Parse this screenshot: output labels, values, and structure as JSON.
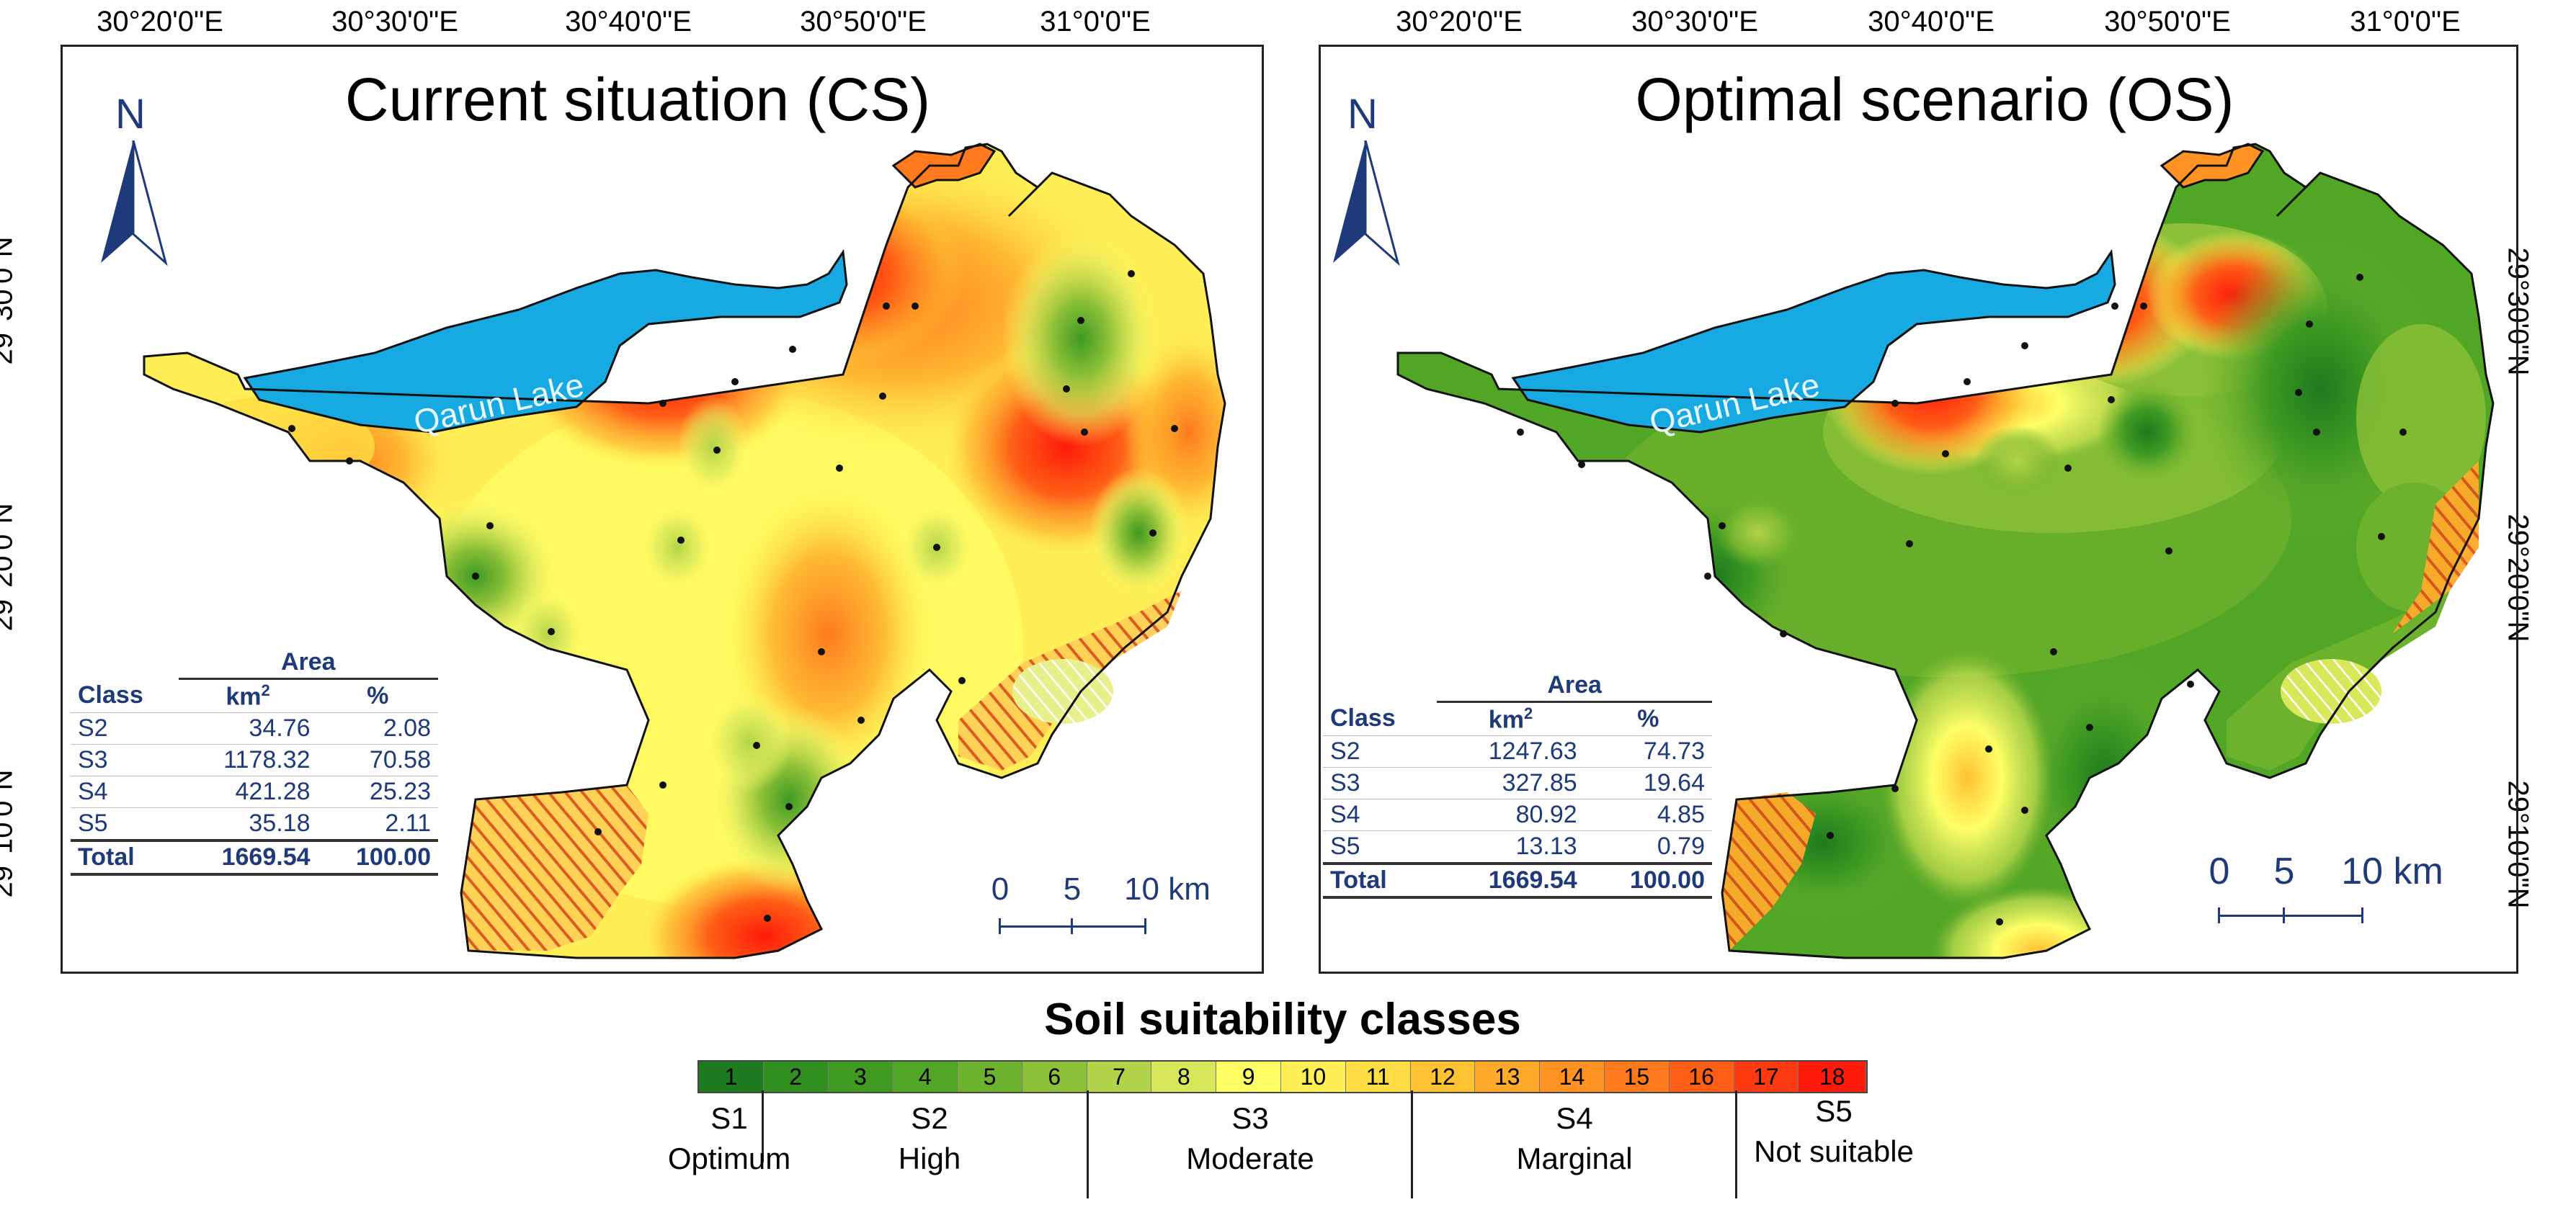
{
  "longitude_labels": [
    "30°20'0\"E",
    "30°30'0\"E",
    "30°40'0\"E",
    "30°50'0\"E",
    "31°0'0\"E"
  ],
  "latitude_labels": [
    "29°30'0\"N",
    "29°20'0\"N",
    "29°10'0\"N"
  ],
  "north_arrow": {
    "letter": "N"
  },
  "lake_label": "Qarun Lake",
  "scale_bar": {
    "labels": [
      "0",
      "5",
      "10 km"
    ]
  },
  "maps": [
    {
      "title": "Current situation (CS)",
      "table": {
        "header_area": "Area",
        "col_class": "Class",
        "col_km2_base": "km",
        "col_km2_sup": "2",
        "col_pct": "%",
        "rows": [
          {
            "cls": "S2",
            "km2": "34.76",
            "pct": "2.08"
          },
          {
            "cls": "S3",
            "km2": "1178.32",
            "pct": "70.58"
          },
          {
            "cls": "S4",
            "km2": "421.28",
            "pct": "25.23"
          },
          {
            "cls": "S5",
            "km2": "35.18",
            "pct": "2.11"
          }
        ],
        "total": {
          "cls": "Total",
          "km2": "1669.54",
          "pct": "100.00"
        }
      }
    },
    {
      "title": "Optimal scenario (OS)",
      "table": {
        "header_area": "Area",
        "col_class": "Class",
        "col_km2_base": "km",
        "col_km2_sup": "2",
        "col_pct": "%",
        "rows": [
          {
            "cls": "S2",
            "km2": "1247.63",
            "pct": "74.73"
          },
          {
            "cls": "S3",
            "km2": "327.85",
            "pct": "19.64"
          },
          {
            "cls": "S4",
            "km2": "80.92",
            "pct": "4.85"
          },
          {
            "cls": "S5",
            "km2": "13.13",
            "pct": "0.79"
          }
        ],
        "total": {
          "cls": "Total",
          "km2": "1669.54",
          "pct": "100.00"
        }
      }
    }
  ],
  "legend": {
    "title": "Soil suitability classes",
    "cells": [
      {
        "label": "1",
        "color": "#1e7a1e"
      },
      {
        "label": "2",
        "color": "#2f8f1f"
      },
      {
        "label": "3",
        "color": "#3f9a22"
      },
      {
        "label": "4",
        "color": "#52a626"
      },
      {
        "label": "5",
        "color": "#6db22c"
      },
      {
        "label": "6",
        "color": "#8cc038"
      },
      {
        "label": "7",
        "color": "#b2d448"
      },
      {
        "label": "8",
        "color": "#d9e85a"
      },
      {
        "label": "9",
        "color": "#ffff66"
      },
      {
        "label": "10",
        "color": "#ffee55"
      },
      {
        "label": "11",
        "color": "#ffdd44"
      },
      {
        "label": "12",
        "color": "#ffc233"
      },
      {
        "label": "13",
        "color": "#ffaa2a"
      },
      {
        "label": "14",
        "color": "#ff9222"
      },
      {
        "label": "15",
        "color": "#ff7a1c"
      },
      {
        "label": "16",
        "color": "#ff5e16"
      },
      {
        "label": "17",
        "color": "#ff3a10"
      },
      {
        "label": "18",
        "color": "#ff1a0a"
      }
    ],
    "groups": [
      {
        "code": "S1",
        "name": "Optimum"
      },
      {
        "code": "S2",
        "name": "High"
      },
      {
        "code": "S3",
        "name": "Moderate"
      },
      {
        "code": "S4",
        "name": "Marginal"
      },
      {
        "code": "S5",
        "name": "Not suitable"
      }
    ],
    "colors": {
      "lake": "#17a9e1",
      "boundary": "#111111",
      "hatch": "#d9531e",
      "text_blue": "#1f3a7a"
    }
  }
}
